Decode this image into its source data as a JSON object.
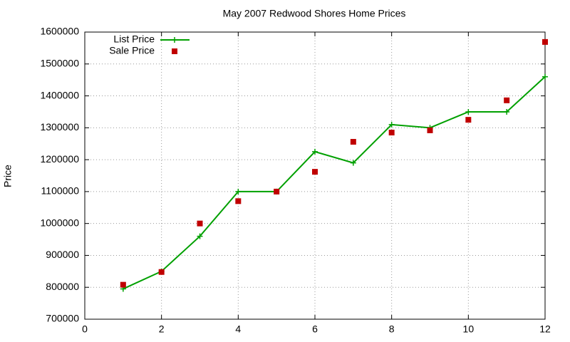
{
  "chart_data": {
    "type": "line",
    "title": "May 2007 Redwood Shores Home Prices",
    "ylabel": "Price",
    "x": [
      1,
      2,
      3,
      4,
      5,
      6,
      7,
      8,
      9,
      10,
      11,
      12
    ],
    "series": [
      {
        "name": "List Price",
        "color": "#00a000",
        "style": "linespoints",
        "values": [
          795000,
          850000,
          960000,
          1100000,
          1100000,
          1225000,
          1190000,
          1310000,
          1300000,
          1350000,
          1350000,
          1460000
        ]
      },
      {
        "name": "Sale Price",
        "color": "#c00000",
        "style": "points",
        "values": [
          808000,
          848000,
          1000000,
          1070000,
          1100000,
          1162000,
          1256000,
          1285000,
          1292000,
          1325000,
          1386000,
          1569000
        ]
      }
    ],
    "xlim": [
      0,
      12
    ],
    "xticks": [
      0,
      2,
      4,
      6,
      8,
      10,
      12
    ],
    "ylim": [
      700000,
      1600000
    ],
    "yticks": [
      700000,
      800000,
      900000,
      1000000,
      1100000,
      1200000,
      1300000,
      1400000,
      1500000,
      1600000
    ],
    "grid": true,
    "legend": "top-left"
  }
}
